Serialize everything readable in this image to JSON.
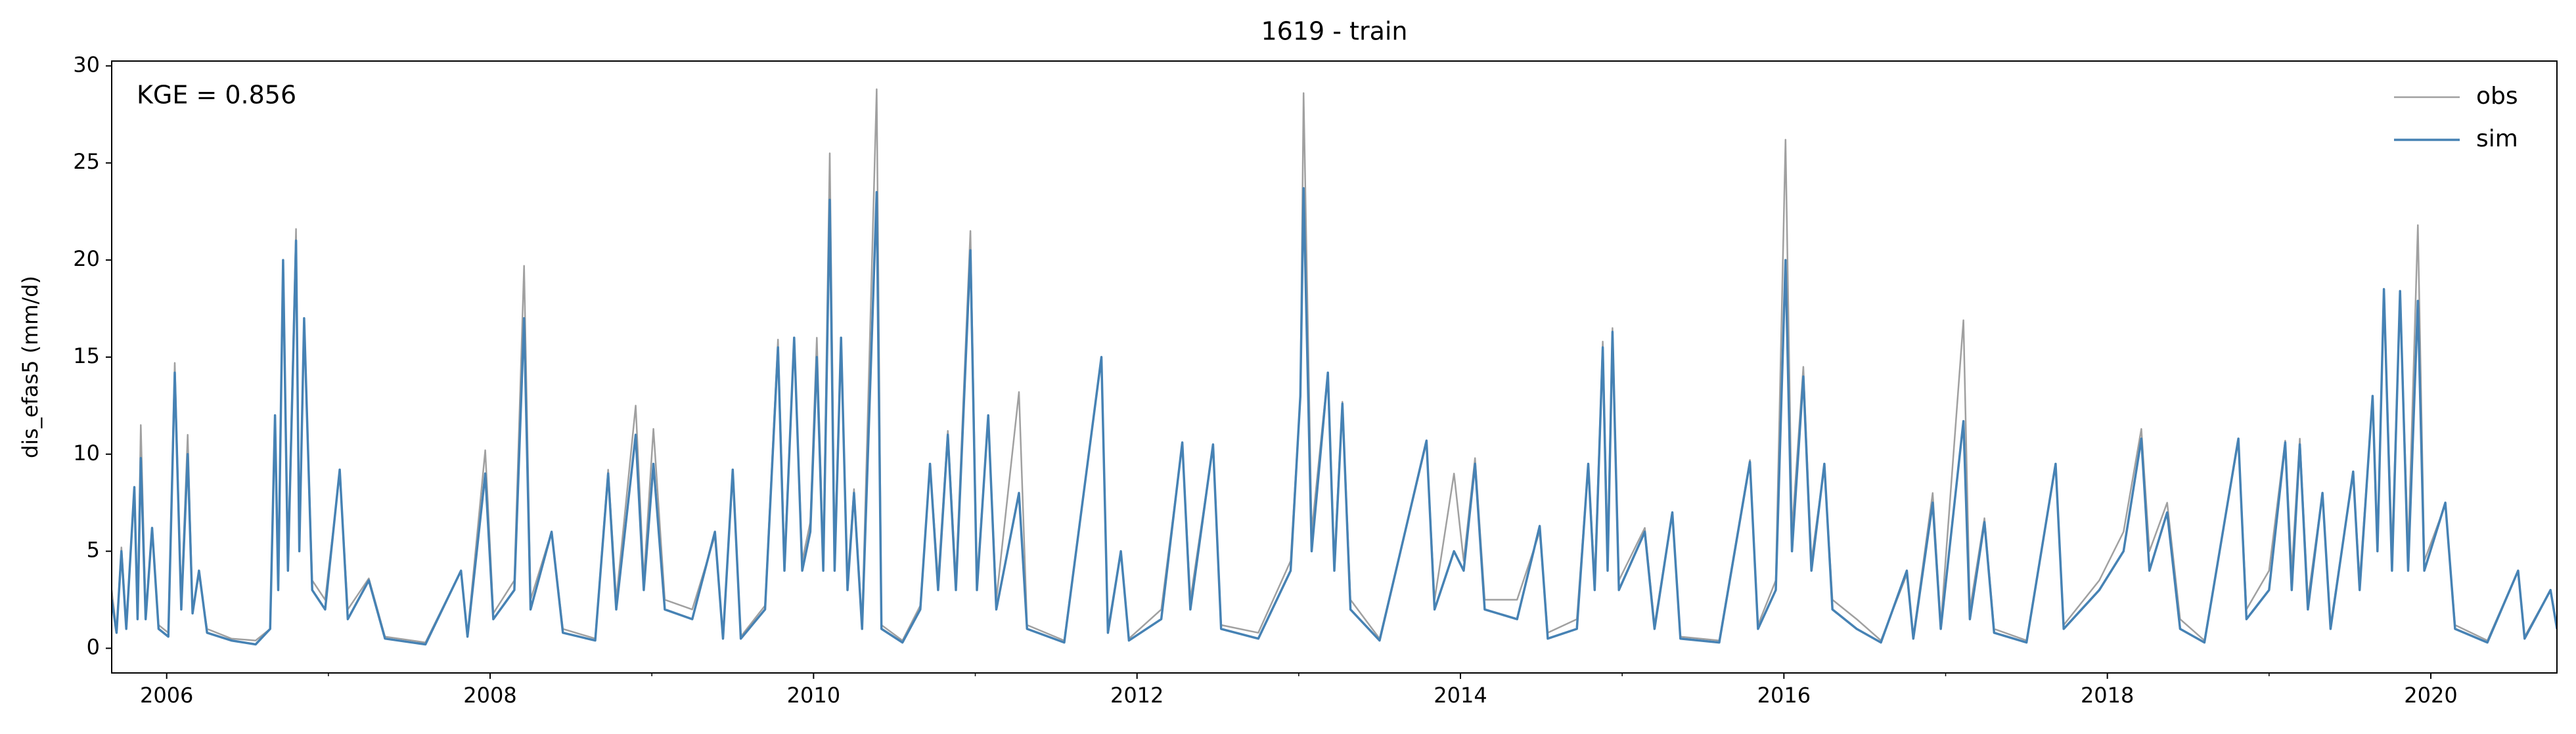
{
  "chart_data": {
    "type": "line",
    "title": "1619 - train",
    "ylabel": "dis_efas5 (mm/d)",
    "annotation": "KGE = 0.856",
    "legend": "upper right",
    "xlim": [
      2005.66,
      2020.78
    ],
    "ylim": [
      -1.27,
      30.25
    ],
    "xticks": [
      2006,
      2008,
      2010,
      2012,
      2014,
      2016,
      2018,
      2020
    ],
    "xminorticks": [
      2007,
      2009,
      2011,
      2013,
      2015,
      2017,
      2019
    ],
    "yticks": [
      0,
      5,
      10,
      15,
      20,
      25,
      30
    ],
    "x": [
      2005.66,
      2005.69,
      2005.72,
      2005.75,
      2005.8,
      2005.82,
      2005.84,
      2005.87,
      2005.91,
      2005.95,
      2006.01,
      2006.05,
      2006.09,
      2006.13,
      2006.16,
      2006.2,
      2006.25,
      2006.4,
      2006.55,
      2006.64,
      2006.67,
      2006.69,
      2006.72,
      2006.75,
      2006.8,
      2006.82,
      2006.85,
      2006.9,
      2006.98,
      2007.07,
      2007.12,
      2007.25,
      2007.35,
      2007.6,
      2007.82,
      2007.86,
      2007.97,
      2008.02,
      2008.15,
      2008.21,
      2008.25,
      2008.38,
      2008.45,
      2008.65,
      2008.73,
      2008.78,
      2008.9,
      2008.95,
      2009.01,
      2009.08,
      2009.25,
      2009.39,
      2009.44,
      2009.5,
      2009.55,
      2009.7,
      2009.78,
      2009.82,
      2009.88,
      2009.93,
      2009.98,
      2010.02,
      2010.06,
      2010.1,
      2010.13,
      2010.17,
      2010.21,
      2010.25,
      2010.3,
      2010.39,
      2010.42,
      2010.55,
      2010.66,
      2010.72,
      2010.77,
      2010.83,
      2010.88,
      2010.97,
      2011.01,
      2011.08,
      2011.13,
      2011.27,
      2011.32,
      2011.55,
      2011.78,
      2011.82,
      2011.9,
      2011.95,
      2012.15,
      2012.28,
      2012.33,
      2012.47,
      2012.52,
      2012.75,
      2012.95,
      2013.01,
      2013.03,
      2013.08,
      2013.18,
      2013.22,
      2013.27,
      2013.32,
      2013.5,
      2013.79,
      2013.84,
      2013.96,
      2014.02,
      2014.09,
      2014.15,
      2014.35,
      2014.49,
      2014.54,
      2014.72,
      2014.79,
      2014.83,
      2014.88,
      2014.91,
      2014.94,
      2014.98,
      2015.14,
      2015.2,
      2015.31,
      2015.36,
      2015.6,
      2015.79,
      2015.84,
      2015.95,
      2016.01,
      2016.05,
      2016.12,
      2016.17,
      2016.25,
      2016.3,
      2016.45,
      2016.6,
      2016.76,
      2016.8,
      2016.92,
      2016.97,
      2017.11,
      2017.15,
      2017.24,
      2017.3,
      2017.5,
      2017.68,
      2017.73,
      2017.95,
      2018.1,
      2018.21,
      2018.26,
      2018.37,
      2018.45,
      2018.6,
      2018.81,
      2018.86,
      2019.0,
      2019.1,
      2019.14,
      2019.19,
      2019.24,
      2019.33,
      2019.38,
      2019.52,
      2019.56,
      2019.64,
      2019.67,
      2019.71,
      2019.76,
      2019.81,
      2019.86,
      2019.92,
      2019.96,
      2020.09,
      2020.15,
      2020.35,
      2020.54,
      2020.58,
      2020.74,
      2020.78
    ],
    "series": [
      {
        "name": "obs",
        "color": "#a0a0a0",
        "values": [
          3,
          0.9,
          5.2,
          1.2,
          8,
          1.8,
          11.5,
          1.8,
          6,
          1.2,
          0.8,
          14.7,
          2.3,
          11,
          2,
          3.8,
          1,
          0.5,
          0.4,
          1,
          12,
          3,
          19.7,
          4.5,
          21.6,
          5.5,
          17,
          3.5,
          2.5,
          9,
          2,
          3.6,
          0.6,
          0.3,
          4,
          0.7,
          10.2,
          1.8,
          3.5,
          19.7,
          2.5,
          6,
          1,
          0.5,
          9.2,
          2.5,
          12.5,
          3.5,
          11.3,
          2.5,
          2,
          5.8,
          0.6,
          9,
          0.6,
          2.2,
          15.9,
          4.5,
          15.8,
          4.5,
          6.5,
          16,
          4.5,
          25.5,
          5,
          15.8,
          3.5,
          8.2,
          1.2,
          28.8,
          1.2,
          0.4,
          2.2,
          9.5,
          3.5,
          11.2,
          3.5,
          21.5,
          3.5,
          11.8,
          2.5,
          13.2,
          1.2,
          0.4,
          15,
          1,
          5,
          0.5,
          2,
          10.5,
          2.5,
          10.4,
          1.2,
          0.8,
          4.5,
          13,
          28.6,
          6,
          14.2,
          4.5,
          12.7,
          2.5,
          0.5,
          10.6,
          2.5,
          9,
          4.5,
          9.8,
          2.5,
          2.5,
          6,
          0.8,
          1.5,
          9.5,
          3.5,
          15.8,
          5,
          16.5,
          3.5,
          6.2,
          1.2,
          7,
          0.6,
          0.4,
          9.7,
          1.2,
          3.5,
          26.2,
          6,
          14.5,
          4.5,
          9.4,
          2.5,
          1.5,
          0.4,
          3.8,
          0.6,
          8,
          1.2,
          16.9,
          2,
          6.7,
          1,
          0.4,
          9.5,
          1.2,
          3.5,
          6,
          11.3,
          5,
          7.5,
          1.5,
          0.4,
          10.7,
          2,
          4,
          10.7,
          4,
          10.8,
          2.5,
          8,
          1.2,
          9,
          3.5,
          12.8,
          5.5,
          18.3,
          5,
          18.2,
          5,
          21.8,
          4.5,
          7.4,
          1.2,
          0.4,
          4,
          0.6,
          3,
          1.2
        ]
      },
      {
        "name": "sim",
        "color": "#4682b4",
        "values": [
          2.5,
          0.8,
          5,
          1,
          8.3,
          1.5,
          9.8,
          1.5,
          6.2,
          1,
          0.6,
          14.2,
          2,
          10,
          1.8,
          4,
          0.8,
          0.4,
          0.2,
          1,
          12,
          3,
          20,
          4,
          21,
          5,
          17,
          3,
          2,
          9.2,
          1.5,
          3.5,
          0.5,
          0.2,
          4,
          0.6,
          9,
          1.5,
          3,
          17,
          2,
          6,
          0.8,
          0.4,
          9,
          2,
          11,
          3,
          9.5,
          2,
          1.5,
          6,
          0.5,
          9.2,
          0.5,
          2,
          15.5,
          4,
          16,
          4,
          6,
          15,
          4,
          23.1,
          4,
          16,
          3,
          8,
          1,
          23.5,
          1,
          0.3,
          2,
          9.5,
          3,
          11,
          3,
          20.5,
          3,
          12,
          2,
          8,
          1,
          0.3,
          15,
          0.8,
          5,
          0.4,
          1.5,
          10.6,
          2,
          10.5,
          1,
          0.5,
          4,
          13,
          23.7,
          5,
          14.2,
          4,
          12.6,
          2,
          0.4,
          10.7,
          2,
          5,
          4,
          9.5,
          2,
          1.5,
          6.3,
          0.5,
          1,
          9.5,
          3,
          15.5,
          4,
          16.3,
          3,
          6,
          1,
          7,
          0.5,
          0.3,
          9.6,
          1,
          3,
          20,
          5,
          14,
          4,
          9.5,
          2,
          1,
          0.3,
          4,
          0.5,
          7.5,
          1,
          11.7,
          1.5,
          6.5,
          0.8,
          0.3,
          9.5,
          1,
          3,
          5,
          10.8,
          4,
          7,
          1,
          0.3,
          10.8,
          1.5,
          3,
          10.6,
          3,
          10.5,
          2,
          8,
          1,
          9.1,
          3,
          13,
          5,
          18.5,
          4,
          18.4,
          4,
          17.9,
          4,
          7.5,
          1,
          0.3,
          4,
          0.5,
          3,
          1
        ]
      }
    ]
  }
}
